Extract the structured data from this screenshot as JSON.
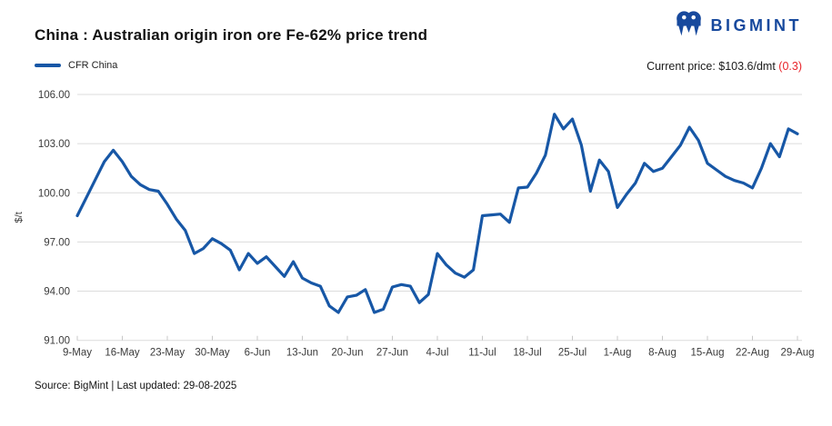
{
  "header": {
    "title": "China : Australian origin iron ore Fe-62% price trend",
    "logo_text": "BIGMINT"
  },
  "legend": {
    "series_label": "CFR China"
  },
  "price_note": {
    "prefix": "Current price: $103.6/dmt ",
    "change": "(0.3)"
  },
  "footer": {
    "source": "Source: BigMint | Last updated: 29-08-2025"
  },
  "colors": {
    "line": "#1757A6",
    "logo": "#17499D",
    "negative": "#E8242B",
    "grid": "#DCDCDC",
    "tick": "#C8C8C8",
    "axis_text": "#3B3B3B",
    "title_text": "#121212"
  },
  "chart_data": {
    "type": "line",
    "title": "China : Australian origin iron ore Fe-62% price trend",
    "ylabel": "$/t",
    "ylim": [
      91,
      106
    ],
    "yticks": [
      91,
      94,
      97,
      100,
      103,
      106
    ],
    "xtick_labels": [
      "9-May",
      "16-May",
      "23-May",
      "30-May",
      "6-Jun",
      "13-Jun",
      "20-Jun",
      "27-Jun",
      "4-Jul",
      "11-Jul",
      "18-Jul",
      "25-Jul",
      "1-Aug",
      "8-Aug",
      "15-Aug",
      "22-Aug",
      "29-Aug"
    ],
    "points_per_tick": 5,
    "grid": "horizontal",
    "legend_position": "top-left",
    "current_price": "$103.6/dmt",
    "change": "0.3",
    "series": [
      {
        "name": "CFR China",
        "dates": [
          "9-May",
          "12-May",
          "13-May",
          "14-May",
          "15-May",
          "16-May",
          "19-May",
          "20-May",
          "21-May",
          "22-May",
          "23-May",
          "26-May",
          "27-May",
          "28-May",
          "29-May",
          "30-May",
          "2-Jun",
          "3-Jun",
          "4-Jun",
          "5-Jun",
          "6-Jun",
          "9-Jun",
          "10-Jun",
          "11-Jun",
          "12-Jun",
          "13-Jun",
          "16-Jun",
          "17-Jun",
          "18-Jun",
          "19-Jun",
          "20-Jun",
          "23-Jun",
          "24-Jun",
          "25-Jun",
          "26-Jun",
          "27-Jun",
          "30-Jun",
          "1-Jul",
          "2-Jul",
          "3-Jul",
          "4-Jul",
          "7-Jul",
          "8-Jul",
          "9-Jul",
          "10-Jul",
          "11-Jul",
          "14-Jul",
          "15-Jul",
          "16-Jul",
          "17-Jul",
          "18-Jul",
          "21-Jul",
          "22-Jul",
          "23-Jul",
          "24-Jul",
          "25-Jul",
          "28-Jul",
          "29-Jul",
          "30-Jul",
          "31-Jul",
          "1-Aug",
          "4-Aug",
          "5-Aug",
          "6-Aug",
          "7-Aug",
          "8-Aug",
          "11-Aug",
          "12-Aug",
          "13-Aug",
          "14-Aug",
          "15-Aug",
          "18-Aug",
          "19-Aug",
          "20-Aug",
          "21-Aug",
          "22-Aug",
          "25-Aug",
          "26-Aug",
          "27-Aug",
          "28-Aug",
          "29-Aug"
        ],
        "values": [
          98.6,
          99.7,
          100.8,
          101.9,
          102.6,
          101.9,
          101.0,
          100.5,
          100.2,
          100.1,
          99.3,
          98.4,
          97.7,
          96.3,
          96.6,
          97.2,
          96.9,
          96.5,
          95.3,
          96.3,
          95.7,
          96.1,
          95.5,
          94.9,
          95.8,
          94.8,
          94.5,
          94.3,
          93.1,
          92.7,
          93.65,
          93.75,
          94.1,
          92.7,
          92.9,
          94.25,
          94.4,
          94.3,
          93.3,
          93.8,
          96.3,
          95.6,
          95.1,
          94.85,
          95.3,
          98.6,
          98.65,
          98.7,
          98.2,
          100.3,
          100.35,
          101.2,
          102.3,
          104.8,
          103.9,
          104.5,
          102.9,
          100.1,
          102.0,
          101.3,
          99.1,
          99.9,
          100.6,
          101.8,
          101.3,
          101.5,
          102.2,
          102.9,
          104.0,
          103.2,
          101.8,
          101.4,
          101.0,
          100.75,
          100.6,
          100.3,
          101.5,
          103.0,
          102.2,
          103.9,
          103.6
        ]
      }
    ]
  }
}
